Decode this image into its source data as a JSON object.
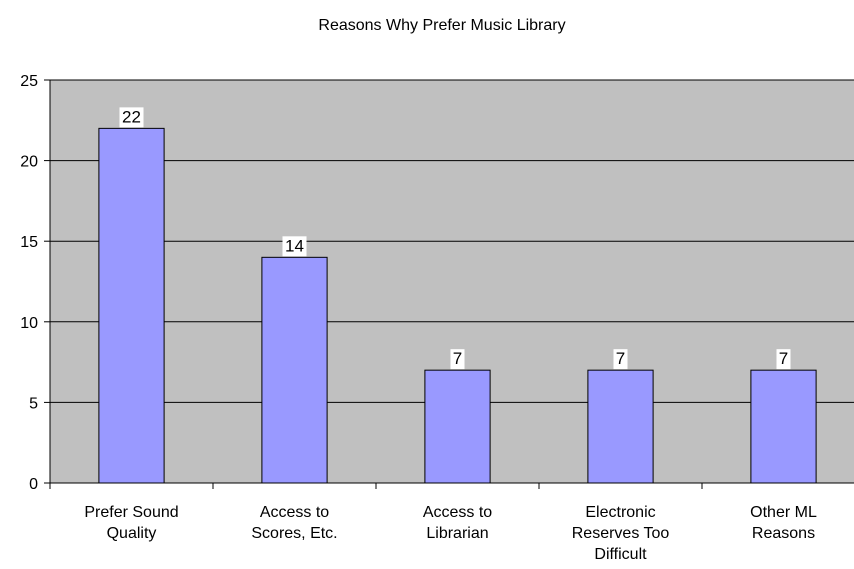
{
  "chart_data": {
    "type": "bar",
    "title": "Reasons Why Prefer Music Library",
    "categories": [
      [
        "Prefer Sound",
        "Quality"
      ],
      [
        "Access to",
        "Scores, Etc."
      ],
      [
        "Access to",
        "Librarian"
      ],
      [
        "Electronic",
        "Reserves Too",
        "Difficult"
      ],
      [
        "Other ML",
        "Reasons"
      ]
    ],
    "values": [
      22,
      14,
      7,
      7,
      7
    ],
    "data_labels": [
      "22",
      "14",
      "7",
      "7",
      "7"
    ],
    "ylim": [
      0,
      25
    ],
    "yticks": [
      0,
      5,
      10,
      15,
      20,
      25
    ],
    "grid": true,
    "legend": "none",
    "colors": {
      "plot_background": "#c0c0c0",
      "bar_fill": "#9999ff",
      "bar_stroke": "#000000",
      "gridline": "#000000",
      "label_background": "#ffffff"
    }
  }
}
